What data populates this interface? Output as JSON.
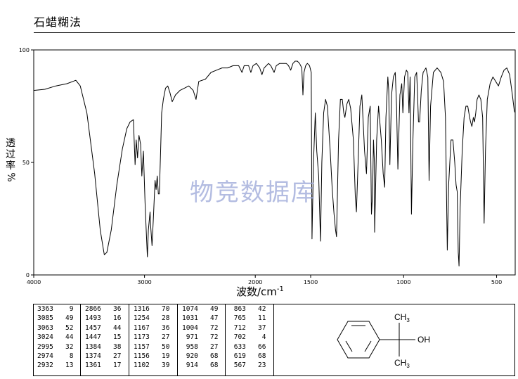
{
  "method_title": "石蜡糊法",
  "watermark": "物竞数据库",
  "chart_data": {
    "type": "line",
    "title": "",
    "xlabel": "波数/cm",
    "xlabel_sup": "-1",
    "ylabel": "透过率%",
    "xlim": [
      4000,
      400
    ],
    "ylim": [
      0,
      100
    ],
    "x_ticks": [
      4000,
      3000,
      2000,
      1500,
      1000,
      500
    ],
    "y_ticks": [
      0,
      50,
      100
    ],
    "grid": false,
    "series": [
      {
        "points": [
          [
            4000,
            82
          ],
          [
            3900,
            82.5
          ],
          [
            3800,
            84
          ],
          [
            3700,
            85
          ],
          [
            3620,
            86.5
          ],
          [
            3580,
            84
          ],
          [
            3520,
            72
          ],
          [
            3450,
            45
          ],
          [
            3400,
            20
          ],
          [
            3370,
            11
          ],
          [
            3363,
            9
          ],
          [
            3340,
            10
          ],
          [
            3300,
            20
          ],
          [
            3250,
            40
          ],
          [
            3200,
            56
          ],
          [
            3160,
            65
          ],
          [
            3130,
            68
          ],
          [
            3100,
            69
          ],
          [
            3085,
            49
          ],
          [
            3075,
            60
          ],
          [
            3063,
            52
          ],
          [
            3050,
            62
          ],
          [
            3035,
            58
          ],
          [
            3024,
            44
          ],
          [
            3010,
            55
          ],
          [
            2995,
            32
          ],
          [
            2985,
            20
          ],
          [
            2974,
            8
          ],
          [
            2965,
            20
          ],
          [
            2950,
            28
          ],
          [
            2945,
            22
          ],
          [
            2932,
            13
          ],
          [
            2920,
            25
          ],
          [
            2905,
            42
          ],
          [
            2895,
            38
          ],
          [
            2885,
            44
          ],
          [
            2875,
            36
          ],
          [
            2866,
            36
          ],
          [
            2855,
            55
          ],
          [
            2845,
            72
          ],
          [
            2830,
            78
          ],
          [
            2810,
            83
          ],
          [
            2790,
            84
          ],
          [
            2770,
            81
          ],
          [
            2750,
            77
          ],
          [
            2720,
            80
          ],
          [
            2680,
            82
          ],
          [
            2640,
            83
          ],
          [
            2600,
            84
          ],
          [
            2560,
            82
          ],
          [
            2535,
            78
          ],
          [
            2510,
            86
          ],
          [
            2450,
            87
          ],
          [
            2400,
            90
          ],
          [
            2350,
            91
          ],
          [
            2300,
            92
          ],
          [
            2250,
            92
          ],
          [
            2200,
            93
          ],
          [
            2150,
            93
          ],
          [
            2120,
            90
          ],
          [
            2100,
            93
          ],
          [
            2060,
            93
          ],
          [
            2040,
            90
          ],
          [
            2020,
            93
          ],
          [
            1990,
            94
          ],
          [
            1960,
            92
          ],
          [
            1940,
            89
          ],
          [
            1920,
            92
          ],
          [
            1900,
            93
          ],
          [
            1880,
            94
          ],
          [
            1860,
            93
          ],
          [
            1830,
            90
          ],
          [
            1810,
            93
          ],
          [
            1780,
            94
          ],
          [
            1750,
            94
          ],
          [
            1720,
            94
          ],
          [
            1700,
            93
          ],
          [
            1680,
            91
          ],
          [
            1660,
            94
          ],
          [
            1640,
            95
          ],
          [
            1620,
            95
          ],
          [
            1600,
            94
          ],
          [
            1580,
            92
          ],
          [
            1570,
            80
          ],
          [
            1560,
            90
          ],
          [
            1545,
            93
          ],
          [
            1530,
            94
          ],
          [
            1510,
            93
          ],
          [
            1497,
            90
          ],
          [
            1493,
            16
          ],
          [
            1485,
            50
          ],
          [
            1475,
            72
          ],
          [
            1467,
            55
          ],
          [
            1457,
            44
          ],
          [
            1447,
            15
          ],
          [
            1440,
            50
          ],
          [
            1430,
            72
          ],
          [
            1420,
            78
          ],
          [
            1410,
            75
          ],
          [
            1395,
            55
          ],
          [
            1384,
            38
          ],
          [
            1374,
            27
          ],
          [
            1366,
            20
          ],
          [
            1361,
            17
          ],
          [
            1350,
            60
          ],
          [
            1340,
            78
          ],
          [
            1330,
            78
          ],
          [
            1322,
            72
          ],
          [
            1316,
            70
          ],
          [
            1305,
            76
          ],
          [
            1295,
            78
          ],
          [
            1285,
            74
          ],
          [
            1270,
            60
          ],
          [
            1260,
            35
          ],
          [
            1254,
            28
          ],
          [
            1245,
            50
          ],
          [
            1235,
            75
          ],
          [
            1225,
            80
          ],
          [
            1210,
            55
          ],
          [
            1200,
            45
          ],
          [
            1190,
            70
          ],
          [
            1180,
            75
          ],
          [
            1173,
            27
          ],
          [
            1167,
            36
          ],
          [
            1162,
            60
          ],
          [
            1157,
            50
          ],
          [
            1156,
            19
          ],
          [
            1145,
            60
          ],
          [
            1135,
            75
          ],
          [
            1120,
            60
          ],
          [
            1110,
            45
          ],
          [
            1102,
            39
          ],
          [
            1095,
            70
          ],
          [
            1085,
            88
          ],
          [
            1080,
            82
          ],
          [
            1074,
            49
          ],
          [
            1065,
            80
          ],
          [
            1055,
            88
          ],
          [
            1045,
            90
          ],
          [
            1038,
            75
          ],
          [
            1031,
            47
          ],
          [
            1020,
            80
          ],
          [
            1010,
            85
          ],
          [
            1004,
            72
          ],
          [
            995,
            88
          ],
          [
            985,
            91
          ],
          [
            978,
            90
          ],
          [
            971,
            72
          ],
          [
            965,
            88
          ],
          [
            958,
            27
          ],
          [
            950,
            60
          ],
          [
            940,
            88
          ],
          [
            930,
            90
          ],
          [
            925,
            80
          ],
          [
            920,
            68
          ],
          [
            914,
            68
          ],
          [
            905,
            82
          ],
          [
            895,
            90
          ],
          [
            880,
            92
          ],
          [
            870,
            88
          ],
          [
            863,
            42
          ],
          [
            855,
            75
          ],
          [
            840,
            90
          ],
          [
            820,
            92
          ],
          [
            800,
            90
          ],
          [
            785,
            86
          ],
          [
            775,
            70
          ],
          [
            770,
            40
          ],
          [
            765,
            11
          ],
          [
            758,
            40
          ],
          [
            745,
            60
          ],
          [
            735,
            60
          ],
          [
            725,
            50
          ],
          [
            718,
            40
          ],
          [
            712,
            37
          ],
          [
            706,
            10
          ],
          [
            702,
            4
          ],
          [
            696,
            30
          ],
          [
            685,
            55
          ],
          [
            675,
            70
          ],
          [
            665,
            75
          ],
          [
            655,
            75
          ],
          [
            645,
            70
          ],
          [
            640,
            68
          ],
          [
            633,
            66
          ],
          [
            625,
            70
          ],
          [
            619,
            68
          ],
          [
            612,
            72
          ],
          [
            605,
            78
          ],
          [
            595,
            80
          ],
          [
            585,
            78
          ],
          [
            575,
            70
          ],
          [
            567,
            23
          ],
          [
            560,
            55
          ],
          [
            550,
            78
          ],
          [
            535,
            85
          ],
          [
            520,
            88
          ],
          [
            505,
            86
          ],
          [
            490,
            84
          ],
          [
            475,
            88
          ],
          [
            460,
            91
          ],
          [
            445,
            92
          ],
          [
            430,
            89
          ],
          [
            415,
            80
          ],
          [
            405,
            73
          ],
          [
            400,
            72
          ]
        ]
      }
    ]
  },
  "peak_table": {
    "columns": [
      [
        [
          "3363",
          "9"
        ],
        [
          "3085",
          "49"
        ],
        [
          "3063",
          "52"
        ],
        [
          "3024",
          "44"
        ],
        [
          "2995",
          "32"
        ],
        [
          "2974",
          "8"
        ],
        [
          "2932",
          "13"
        ]
      ],
      [
        [
          "2866",
          "36"
        ],
        [
          "1493",
          "16"
        ],
        [
          "1457",
          "44"
        ],
        [
          "1447",
          "15"
        ],
        [
          "1384",
          "38"
        ],
        [
          "1374",
          "27"
        ],
        [
          "1361",
          "17"
        ]
      ],
      [
        [
          "1316",
          "70"
        ],
        [
          "1254",
          "28"
        ],
        [
          "1167",
          "36"
        ],
        [
          "1173",
          "27"
        ],
        [
          "1157",
          "50"
        ],
        [
          "1156",
          "19"
        ],
        [
          "1102",
          "39"
        ]
      ],
      [
        [
          "1074",
          "49"
        ],
        [
          "1031",
          "47"
        ],
        [
          "1004",
          "72"
        ],
        [
          "971",
          "72"
        ],
        [
          "958",
          "27"
        ],
        [
          "920",
          "68"
        ],
        [
          "914",
          "68"
        ]
      ],
      [
        [
          "863",
          "42"
        ],
        [
          "765",
          "11"
        ],
        [
          "712",
          "37"
        ],
        [
          "702",
          "4"
        ],
        [
          "633",
          "66"
        ],
        [
          "619",
          "68"
        ],
        [
          "567",
          "23"
        ]
      ]
    ]
  },
  "structure": {
    "methyl_top_label": "CH",
    "methyl_top_sub": "3",
    "hydroxyl_label": "OH",
    "methyl_bottom_label": "CH",
    "methyl_bottom_sub": "3"
  }
}
